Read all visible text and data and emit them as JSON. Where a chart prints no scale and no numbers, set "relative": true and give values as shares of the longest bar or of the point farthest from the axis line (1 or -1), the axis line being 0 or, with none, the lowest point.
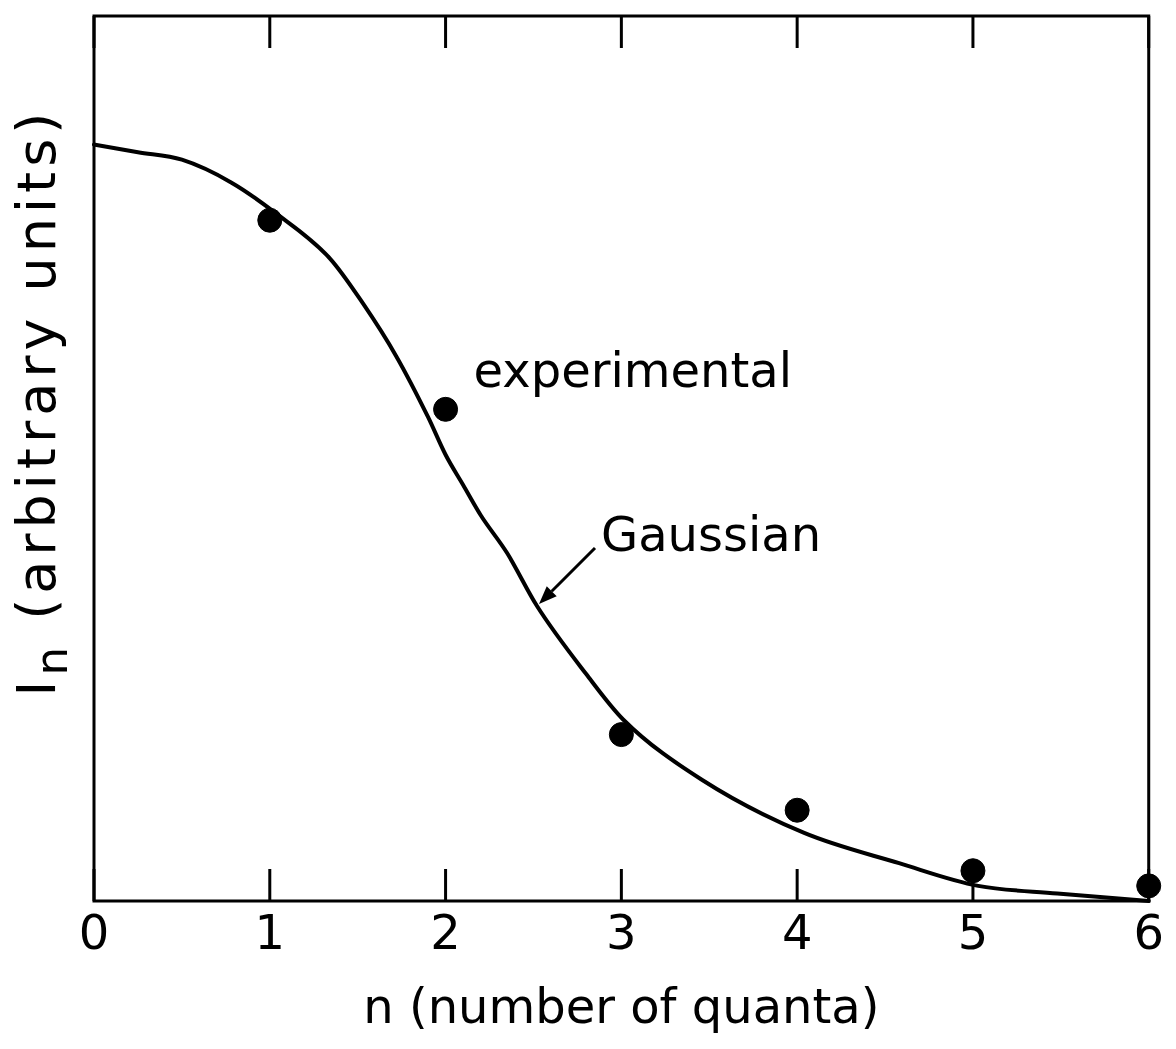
{
  "chart_data": {
    "type": "scatter",
    "xlabel": "n (number of quanta)",
    "ylabel": "I$_{n}$ (arbitrary units)",
    "relative": true,
    "xlim": [
      0,
      6
    ],
    "xticks": [
      0,
      1,
      2,
      3,
      4,
      5,
      6
    ],
    "grid": false,
    "series": [
      {
        "name": "experimental",
        "color": "#000000",
        "marker": "circle",
        "x": [
          1,
          2,
          3,
          4,
          5,
          6
        ],
        "values": [
          0.9,
          0.65,
          0.22,
          0.12,
          0.04,
          0.02
        ]
      },
      {
        "name": "Gaussian",
        "type": "line",
        "color": "#000000",
        "marker": "none",
        "x": [
          0,
          0.25,
          0.5,
          0.78,
          1.03,
          1.34,
          1.53,
          1.72,
          1.9,
          2.0,
          2.1,
          2.2,
          2.35,
          2.52,
          2.8,
          3.01,
          3.46,
          4.04,
          4.58,
          5.03,
          5.48,
          6
        ],
        "values": [
          1.0,
          0.99,
          0.98,
          0.95,
          0.91,
          0.85,
          0.79,
          0.72,
          0.64,
          0.59,
          0.55,
          0.51,
          0.46,
          0.39,
          0.3,
          0.24,
          0.16,
          0.09,
          0.05,
          0.02,
          0.01,
          0
        ]
      }
    ]
  }
}
